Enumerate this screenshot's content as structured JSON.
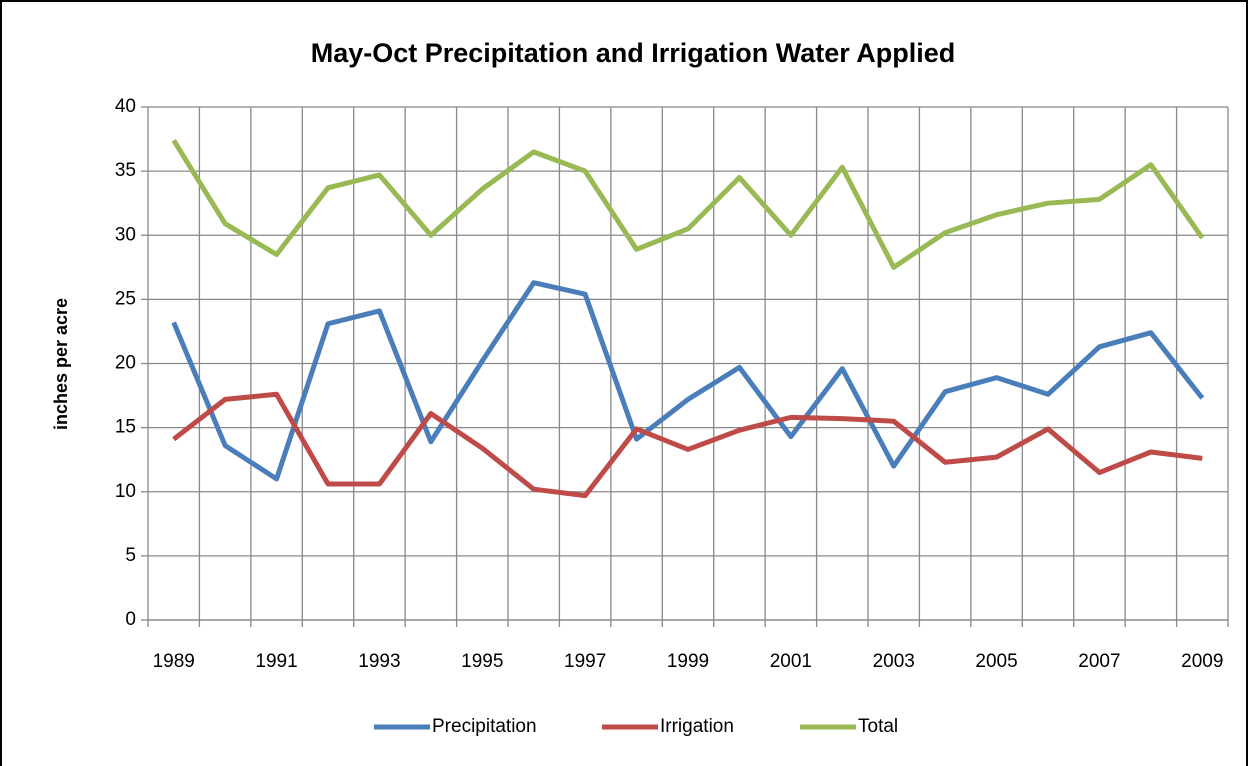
{
  "chart_data": {
    "type": "line",
    "title": "May-Oct Precipitation and Irrigation Water Applied",
    "y_label": "inches per acre",
    "categories": [
      "1989",
      null,
      "1991",
      null,
      "1993",
      null,
      "1995",
      null,
      "1997",
      null,
      "1999",
      null,
      "2001",
      null,
      "2003",
      null,
      "2005",
      null,
      "2007",
      null,
      "2009"
    ],
    "series": [
      {
        "name": "Precipitation",
        "color": "#4a7ebb",
        "values": [
          23.2,
          13.6,
          11.0,
          23.1,
          24.1,
          13.9,
          20.2,
          26.3,
          25.4,
          14.1,
          17.2,
          19.7,
          14.3,
          19.6,
          12.0,
          17.8,
          18.9,
          17.6,
          21.3,
          22.4,
          17.3
        ]
      },
      {
        "name": "Irrigation",
        "color": "#be4b48",
        "values": [
          14.1,
          17.2,
          17.6,
          10.6,
          10.6,
          16.1,
          13.4,
          10.2,
          9.7,
          14.9,
          13.3,
          14.8,
          15.8,
          15.7,
          15.5,
          12.3,
          12.7,
          14.9,
          11.5,
          13.1,
          12.6
        ]
      },
      {
        "name": "Total",
        "color": "#98b954",
        "values": [
          37.4,
          30.9,
          28.5,
          33.7,
          34.7,
          30.0,
          33.6,
          36.5,
          35.0,
          28.9,
          30.5,
          34.5,
          30.0,
          35.3,
          27.5,
          30.2,
          31.6,
          32.5,
          32.8,
          35.5,
          29.8
        ]
      }
    ],
    "ylim": [
      0,
      40
    ],
    "yticks": [
      0,
      5,
      10,
      15,
      20,
      25,
      30,
      35,
      40
    ],
    "grid": true,
    "legend": "bottom"
  }
}
